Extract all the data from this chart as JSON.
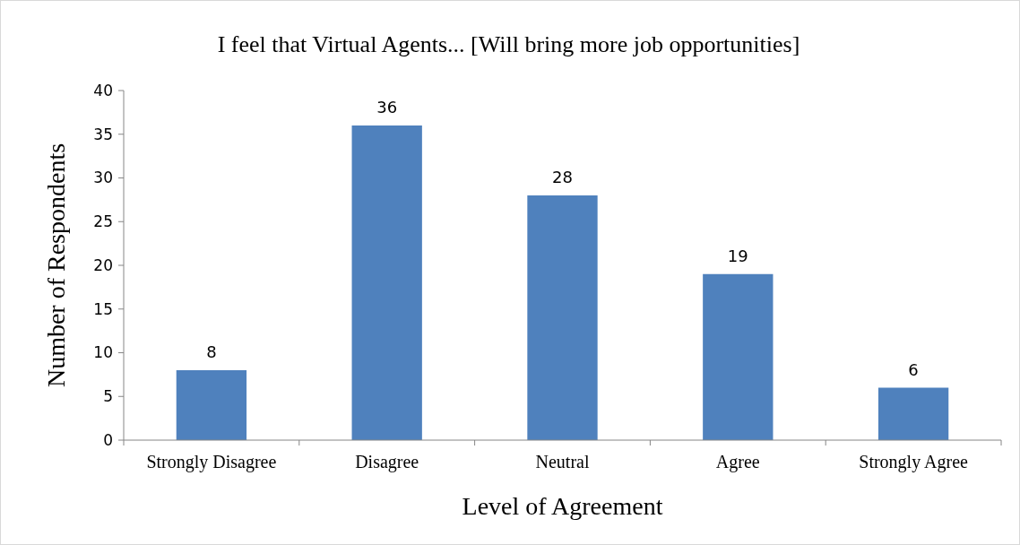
{
  "chart_data": {
    "type": "bar",
    "title": "I feel that Virtual Agents... [Will bring more job opportunities]",
    "xlabel": "Level of Agreement",
    "ylabel": "Number of Respondents",
    "categories": [
      "Strongly Disagree",
      "Disagree",
      "Neutral",
      "Agree",
      "Strongly Agree"
    ],
    "values": [
      8,
      36,
      28,
      19,
      6
    ],
    "color": "#4f81bd",
    "ylim": [
      0,
      40
    ],
    "yticks": [
      0,
      5,
      10,
      15,
      20,
      25,
      30,
      35,
      40
    ],
    "grid": false,
    "data_labels": true
  }
}
